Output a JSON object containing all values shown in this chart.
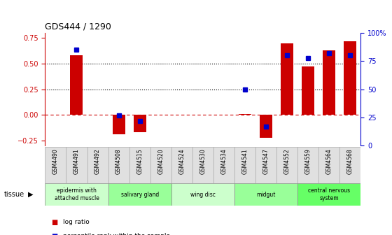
{
  "title": "GDS444 / 1290",
  "samples": [
    "GSM4490",
    "GSM4491",
    "GSM4492",
    "GSM4508",
    "GSM4515",
    "GSM4520",
    "GSM4524",
    "GSM4530",
    "GSM4534",
    "GSM4541",
    "GSM4547",
    "GSM4552",
    "GSM4559",
    "GSM4564",
    "GSM4568"
  ],
  "log_ratio": [
    0.0,
    0.58,
    0.0,
    -0.19,
    -0.17,
    0.0,
    0.0,
    0.0,
    0.0,
    0.01,
    -0.22,
    0.7,
    0.47,
    0.63,
    0.72
  ],
  "percentile": [
    null,
    85,
    null,
    27,
    22,
    null,
    null,
    null,
    null,
    50,
    17,
    80,
    78,
    82,
    80
  ],
  "bar_color": "#cc0000",
  "dot_color": "#0000cc",
  "tissues": [
    {
      "label": "epidermis with\nattached muscle",
      "start": 0,
      "end": 3,
      "color": "#ccffcc"
    },
    {
      "label": "salivary gland",
      "start": 3,
      "end": 6,
      "color": "#99ff99"
    },
    {
      "label": "wing disc",
      "start": 6,
      "end": 9,
      "color": "#ccffcc"
    },
    {
      "label": "midgut",
      "start": 9,
      "end": 12,
      "color": "#99ff99"
    },
    {
      "label": "central nervous\nsystem",
      "start": 12,
      "end": 15,
      "color": "#66ff66"
    }
  ],
  "ylim_left": [
    -0.3,
    0.8
  ],
  "ylim_right": [
    0,
    100
  ],
  "yticks_left": [
    -0.25,
    0.0,
    0.25,
    0.5,
    0.75
  ],
  "yticks_right": [
    0,
    25,
    50,
    75,
    100
  ],
  "hlines": [
    0.0,
    0.25,
    0.5
  ],
  "hline_styles": [
    "dashed",
    "dotted",
    "dotted"
  ],
  "hline_colors": [
    "#cc0000",
    "black",
    "black"
  ]
}
